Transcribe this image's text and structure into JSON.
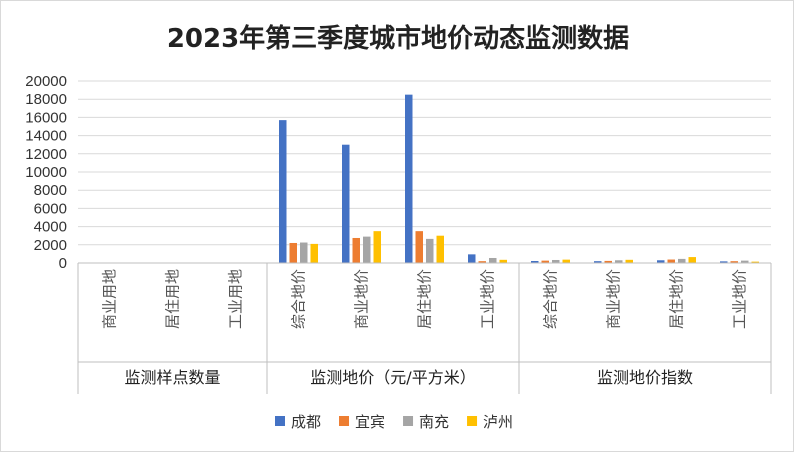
{
  "chart_data": {
    "type": "bar",
    "title": "2023年第三季度城市地价动态监测数据",
    "ylim": [
      0,
      20000
    ],
    "yticks": [
      0,
      2000,
      4000,
      6000,
      8000,
      10000,
      12000,
      14000,
      16000,
      18000,
      20000
    ],
    "grid": true,
    "legend_position": "bottom",
    "groups": [
      {
        "label": "监测样点数量",
        "categories": [
          "商业用地",
          "居住用地",
          "工业用地"
        ]
      },
      {
        "label": "监测地价（元/平方米）",
        "categories": [
          "综合地价",
          "商业地价",
          "居住地价",
          "工业地价"
        ]
      },
      {
        "label": "监测地价指数",
        "categories": [
          "综合地价",
          "商业地价",
          "居住地价",
          "工业地价"
        ]
      }
    ],
    "series": [
      {
        "name": "成都",
        "color": "#4472C4",
        "values": [
          0,
          0,
          0,
          15700,
          13000,
          18500,
          950,
          220,
          200,
          300,
          180
        ]
      },
      {
        "name": "宜宾",
        "color": "#ED7D31",
        "values": [
          0,
          0,
          0,
          2200,
          2750,
          3500,
          200,
          260,
          230,
          380,
          200
        ]
      },
      {
        "name": "南充",
        "color": "#A5A5A5",
        "values": [
          0,
          0,
          0,
          2250,
          2900,
          2650,
          550,
          330,
          300,
          450,
          260
        ]
      },
      {
        "name": "泸州",
        "color": "#FFC000",
        "values": [
          0,
          0,
          0,
          2100,
          3500,
          3000,
          350,
          370,
          350,
          650,
          150
        ]
      }
    ]
  }
}
